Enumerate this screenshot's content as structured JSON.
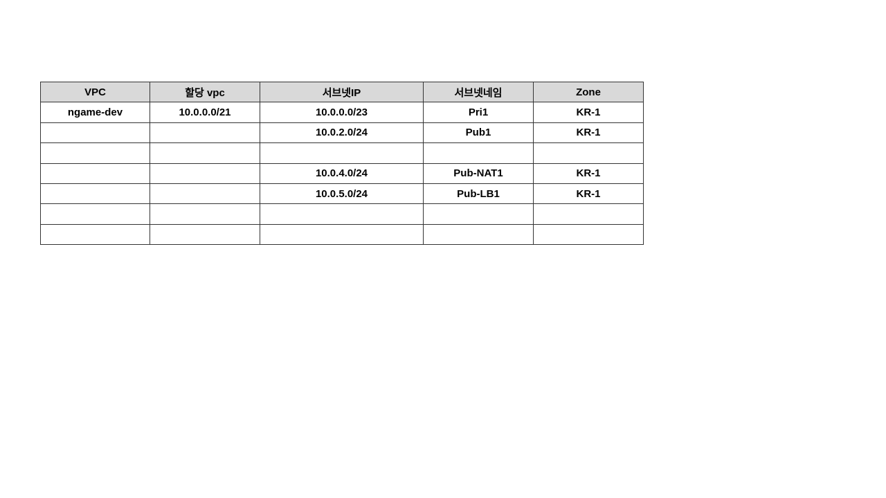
{
  "table": {
    "headers": [
      "VPC",
      "할당 vpc",
      "서브넷IP",
      "서브넷네임",
      "Zone"
    ],
    "rows": [
      [
        "ngame-dev",
        "10.0.0.0/21",
        "10.0.0.0/23",
        "Pri1",
        "KR-1"
      ],
      [
        "",
        "",
        "10.0.2.0/24",
        "Pub1",
        "KR-1"
      ],
      [
        "",
        "",
        "",
        "",
        ""
      ],
      [
        "",
        "",
        "10.0.4.0/24",
        "Pub-NAT1",
        "KR-1"
      ],
      [
        "",
        "",
        "10.0.5.0/24",
        "Pub-LB1",
        "KR-1"
      ],
      [
        "",
        "",
        "",
        "",
        ""
      ],
      [
        "",
        "",
        "",
        "",
        ""
      ]
    ],
    "header_bg": "#d9d9d9"
  }
}
